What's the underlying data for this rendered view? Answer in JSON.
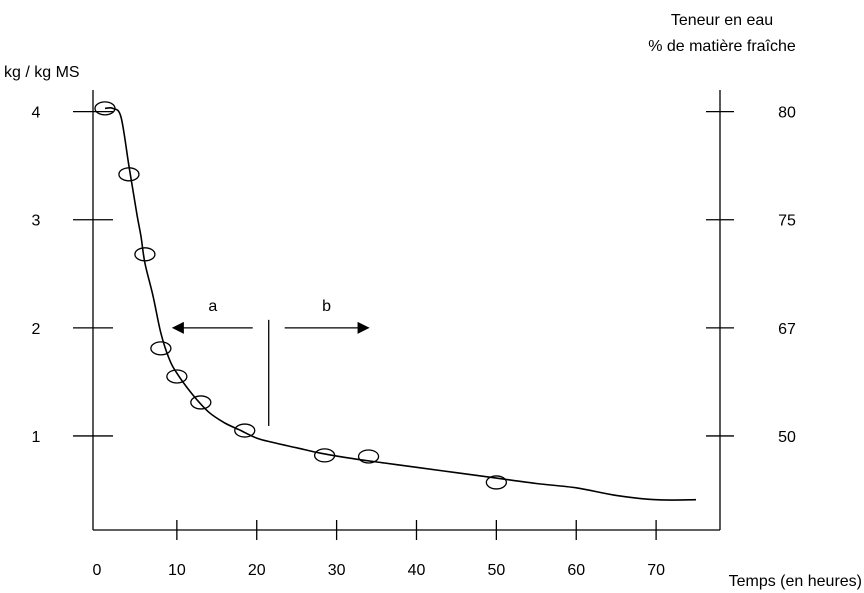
{
  "chart_data": {
    "type": "scatter",
    "y_axis_left": {
      "label": "kg / kg MS",
      "ticks": [
        1,
        2,
        3,
        4
      ],
      "range": [
        0.13,
        4.2
      ]
    },
    "y_axis_right": {
      "label_line1": "Teneur en eau",
      "label_line2": "% de matière fraîche",
      "ticks": [
        {
          "at": 4,
          "label": "80"
        },
        {
          "at": 3,
          "label": "75"
        },
        {
          "at": 2,
          "label": "67"
        },
        {
          "at": 1,
          "label": "50"
        }
      ]
    },
    "x_axis": {
      "label": "Temps (en heures)",
      "ticks": [
        0,
        10,
        20,
        30,
        40,
        50,
        60,
        70
      ],
      "range": [
        -0.5,
        78
      ]
    },
    "series": [
      {
        "points": [
          {
            "x": 1,
            "y": 4.03
          },
          {
            "x": 4,
            "y": 3.42
          },
          {
            "x": 6,
            "y": 2.68
          },
          {
            "x": 8,
            "y": 1.81
          },
          {
            "x": 10,
            "y": 1.55
          },
          {
            "x": 13,
            "y": 1.31
          },
          {
            "x": 18.5,
            "y": 1.05
          },
          {
            "x": 28.5,
            "y": 0.82
          },
          {
            "x": 34,
            "y": 0.81
          },
          {
            "x": 50,
            "y": 0.57
          }
        ],
        "curve": [
          [
            1,
            4.03
          ],
          [
            2,
            4.03
          ],
          [
            3,
            3.95
          ],
          [
            4,
            3.5
          ],
          [
            5,
            3.05
          ],
          [
            5.5,
            2.85
          ],
          [
            6,
            2.6
          ],
          [
            7,
            2.3
          ],
          [
            8,
            1.95
          ],
          [
            9,
            1.72
          ],
          [
            10,
            1.58
          ],
          [
            12,
            1.38
          ],
          [
            14,
            1.22
          ],
          [
            16,
            1.12
          ],
          [
            18,
            1.05
          ],
          [
            20,
            0.98
          ],
          [
            22,
            0.94
          ],
          [
            25,
            0.89
          ],
          [
            28,
            0.84
          ],
          [
            32,
            0.79
          ],
          [
            36,
            0.75
          ],
          [
            40,
            0.71
          ],
          [
            45,
            0.66
          ],
          [
            50,
            0.61
          ],
          [
            55,
            0.56
          ],
          [
            60,
            0.52
          ],
          [
            65,
            0.45
          ],
          [
            70,
            0.41
          ],
          [
            75,
            0.41
          ]
        ]
      }
    ],
    "annotations": {
      "a": {
        "label": "a",
        "from_x": 19.5,
        "to_x": 9.5,
        "y": 2.0
      },
      "b": {
        "label": "b",
        "from_x": 23.5,
        "to_x": 34,
        "y": 2.0
      },
      "divider": {
        "x": 21.5,
        "y_from": 1.25,
        "y_to": 2.0
      }
    }
  }
}
